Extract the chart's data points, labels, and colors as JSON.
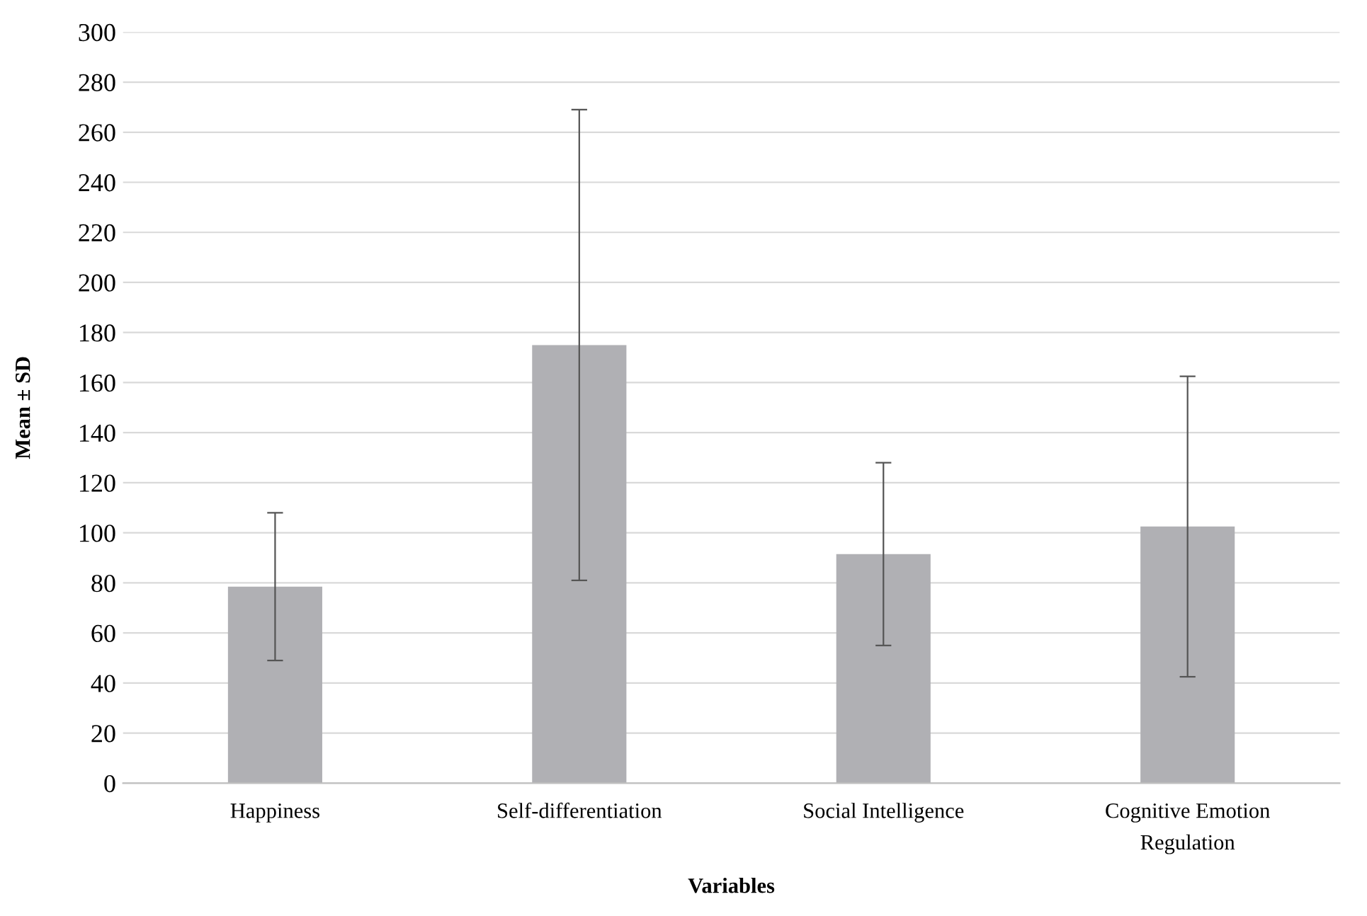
{
  "chart_data": {
    "type": "bar",
    "xlabel": "Variables",
    "ylabel": "Mean ± SD",
    "categories": [
      "Happiness",
      "Self-differentiation",
      "Social Intelligence",
      "Cognitive Emotion\nRegulation"
    ],
    "values": [
      78.5,
      175,
      91.5,
      102.5
    ],
    "errors": [
      29.5,
      94,
      36.5,
      60
    ],
    "color": "#b0b0b4",
    "ylim": [
      0,
      300
    ],
    "yticks": [
      0,
      20,
      40,
      60,
      80,
      100,
      120,
      140,
      160,
      180,
      200,
      220,
      240,
      260,
      280,
      300
    ],
    "grid": "y"
  }
}
